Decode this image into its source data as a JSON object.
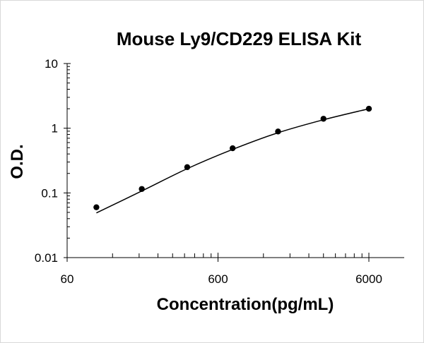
{
  "chart_data": {
    "type": "scatter",
    "title": "Mouse Ly9/CD229 ELISA Kit",
    "xlabel": "Concentration(pg/mL)",
    "ylabel": "O.D.",
    "x_scale": "log",
    "y_scale": "log",
    "xlim": [
      60,
      6000
    ],
    "ylim": [
      0.01,
      10
    ],
    "x_ticks": [
      "60",
      "600",
      "6000"
    ],
    "y_ticks": [
      "0.01",
      "0.1",
      "1",
      "10"
    ],
    "grid": false,
    "legend": "none",
    "series": [
      {
        "points": [
          {
            "x": 93.75,
            "y": 0.06
          },
          {
            "x": 187.5,
            "y": 0.115
          },
          {
            "x": 375,
            "y": 0.25
          },
          {
            "x": 750,
            "y": 0.49
          },
          {
            "x": 1500,
            "y": 0.89
          },
          {
            "x": 3000,
            "y": 1.4
          },
          {
            "x": 6000,
            "y": 2.0
          }
        ],
        "fit_line": [
          {
            "x": 93.75,
            "y": 0.049
          },
          {
            "x": 187.5,
            "y": 0.107
          },
          {
            "x": 375,
            "y": 0.237
          },
          {
            "x": 750,
            "y": 0.47
          },
          {
            "x": 1500,
            "y": 0.85
          },
          {
            "x": 3000,
            "y": 1.35
          },
          {
            "x": 6000,
            "y": 2.0
          }
        ]
      }
    ],
    "colors": {
      "marker": "#000000",
      "line": "#000000",
      "axis": "#000000"
    }
  }
}
